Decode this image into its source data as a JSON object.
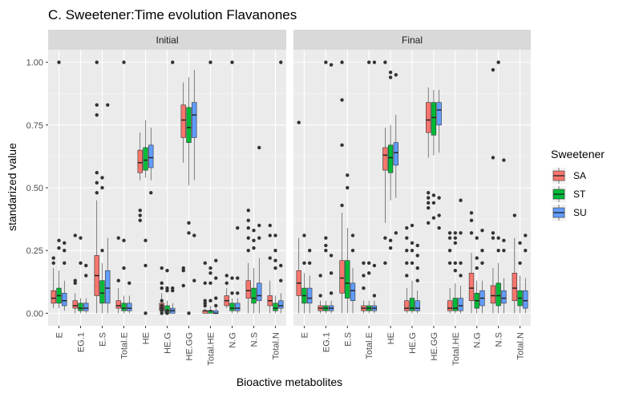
{
  "chart_data": {
    "type": "boxplot",
    "title": "C. Sweetener:Time evolution Flavanones",
    "xlabel": "Bioactive metabolites",
    "ylabel": "standarized value",
    "ylim": [
      -0.05,
      1.05
    ],
    "yticks": [
      0.0,
      0.25,
      0.5,
      0.75,
      1.0
    ],
    "ytick_labels": [
      "0.00",
      "0.25",
      "0.50",
      "0.75",
      "1.00"
    ],
    "grid": true,
    "legend": {
      "title": "Sweetener",
      "position": "right",
      "items": [
        {
          "name": "SA",
          "color": "#F8766D"
        },
        {
          "name": "ST",
          "color": "#00BA38"
        },
        {
          "name": "SU",
          "color": "#619CFF"
        }
      ]
    },
    "categories": [
      "E",
      "EG.1",
      "E.S",
      "Total.E",
      "HE",
      "HE.G",
      "HE.GG",
      "Total.HE",
      "N.G",
      "N.S",
      "Total.N"
    ],
    "facets": [
      {
        "label": "Initial",
        "boxes": [
          [
            [
              0.02,
              0.04,
              0.06,
              0.09,
              0.18,
              [
                0.2,
                0.22
              ]
            ],
            [
              0.02,
              0.04,
              0.07,
              0.1,
              0.17,
              [
                0.26,
                0.29,
                1.0
              ]
            ],
            [
              0.01,
              0.03,
              0.05,
              0.08,
              0.13,
              [
                0.2,
                0.28,
                0.25
              ]
            ]
          ],
          [
            [
              0.0,
              0.02,
              0.03,
              0.05,
              0.08,
              [
                0.13,
                0.31,
                0.12
              ]
            ],
            [
              0.0,
              0.01,
              0.02,
              0.04,
              0.06,
              [
                0.2,
                0.3
              ]
            ],
            [
              0.0,
              0.01,
              0.02,
              0.04,
              0.06,
              [
                0.15,
                0.19
              ]
            ]
          ],
          [
            [
              0.0,
              0.07,
              0.15,
              0.23,
              0.45,
              [
                0.48,
                0.52,
                0.56,
                0.79,
                0.83,
                1.0
              ]
            ],
            [
              0.0,
              0.04,
              0.08,
              0.13,
              0.2,
              [
                0.25,
                0.5,
                0.54
              ]
            ],
            [
              0.0,
              0.04,
              0.1,
              0.17,
              0.3,
              [
                0.83
              ]
            ]
          ],
          [
            [
              0.0,
              0.02,
              0.03,
              0.05,
              0.1,
              [
                0.13,
                0.3
              ]
            ],
            [
              0.0,
              0.01,
              0.02,
              0.04,
              0.07,
              [
                0.18,
                0.29,
                1.0
              ]
            ],
            [
              0.0,
              0.01,
              0.02,
              0.04,
              0.07,
              [
                0.12
              ]
            ]
          ],
          [
            [
              0.53,
              0.56,
              0.6,
              0.65,
              0.72,
              [
                0.41,
                0.39,
                0.37
              ]
            ],
            [
              0.54,
              0.57,
              0.61,
              0.66,
              0.77,
              [
                0.29,
                0.19,
                0.0
              ]
            ],
            [
              0.53,
              0.58,
              0.62,
              0.67,
              0.74,
              [
                0.48
              ]
            ]
          ],
          [
            [
              0.0,
              0.01,
              0.02,
              0.04,
              0.08,
              [
                0.18,
                0.12,
                0.1,
                0.05,
                0.03,
                0.02,
                0.01,
                0.0
              ]
            ],
            [
              0.0,
              0.0,
              0.01,
              0.03,
              0.05,
              [
                0.17,
                0.1,
                0.09,
                0.01,
                0.0
              ]
            ],
            [
              0.0,
              0.0,
              0.01,
              0.02,
              0.04,
              [
                0.1,
                0.09,
                1.0
              ]
            ]
          ],
          [
            [
              0.6,
              0.7,
              0.77,
              0.83,
              0.92,
              [
                0.18,
                0.17,
                0.11
              ]
            ],
            [
              0.51,
              0.68,
              0.74,
              0.82,
              0.94,
              [
                0.36,
                0.32,
                0.0
              ]
            ],
            [
              0.53,
              0.7,
              0.79,
              0.84,
              0.97,
              [
                0.31,
                0.13
              ]
            ]
          ],
          [
            [
              0.0,
              0.0,
              0.01,
              0.01,
              0.02,
              [
                0.2,
                0.12,
                0.05,
                0.04,
                0.03
              ]
            ],
            [
              0.0,
              0.0,
              0.01,
              0.01,
              0.03,
              [
                0.18,
                0.16,
                0.12,
                0.05,
                1.0
              ]
            ],
            [
              0.0,
              0.0,
              0.0,
              0.01,
              0.02,
              [
                0.21,
                0.14,
                0.06,
                0.03
              ]
            ]
          ],
          [
            [
              0.02,
              0.03,
              0.05,
              0.07,
              0.1,
              [
                0.12,
                0.15
              ]
            ],
            [
              0.0,
              0.01,
              0.02,
              0.04,
              0.06,
              [
                0.14,
                0.08,
                1.0
              ]
            ],
            [
              0.0,
              0.01,
              0.02,
              0.04,
              0.06,
              [
                0.14,
                0.08,
                0.34
              ]
            ]
          ],
          [
            [
              0.0,
              0.06,
              0.09,
              0.13,
              0.2,
              [
                0.25,
                0.3,
                0.37,
                0.41,
                0.34
              ]
            ],
            [
              0.0,
              0.04,
              0.06,
              0.1,
              0.18,
              [
                0.26,
                0.29,
                0.33
              ]
            ],
            [
              0.0,
              0.05,
              0.07,
              0.12,
              0.22,
              [
                0.3,
                0.35,
                0.66
              ]
            ]
          ],
          [
            [
              0.0,
              0.03,
              0.05,
              0.07,
              0.13,
              [
                0.22,
                0.31,
                0.35
              ]
            ],
            [
              0.0,
              0.01,
              0.02,
              0.04,
              0.07,
              [
                0.18,
                0.21,
                0.25,
                0.31
              ]
            ],
            [
              0.0,
              0.02,
              0.03,
              0.05,
              0.08,
              [
                0.13,
                0.19,
                1.0
              ]
            ]
          ]
        ]
      },
      {
        "label": "Final",
        "boxes": [
          [
            [
              0.0,
              0.07,
              0.12,
              0.17,
              0.3,
              [
                0.76
              ]
            ],
            [
              0.0,
              0.04,
              0.07,
              0.1,
              0.16,
              [
                0.2,
                0.31
              ]
            ],
            [
              0.0,
              0.04,
              0.06,
              0.1,
              0.15,
              [
                0.2,
                0.25
              ]
            ]
          ],
          [
            [
              0.0,
              0.01,
              0.02,
              0.03,
              0.05,
              [
                0.07,
                0.15
              ]
            ],
            [
              0.0,
              0.01,
              0.02,
              0.03,
              0.05,
              [
                0.25,
                0.27,
                0.3,
                1.0
              ]
            ],
            [
              0.0,
              0.01,
              0.02,
              0.03,
              0.05,
              [
                0.08,
                0.16,
                0.23,
                0.99
              ]
            ]
          ],
          [
            [
              0.0,
              0.08,
              0.14,
              0.21,
              0.4,
              [
                0.43,
                0.67,
                0.85,
                1.0
              ]
            ],
            [
              0.0,
              0.06,
              0.12,
              0.21,
              0.34,
              [
                0.5,
                0.55
              ]
            ],
            [
              0.0,
              0.05,
              0.09,
              0.12,
              0.18,
              [
                0.25,
                0.31
              ]
            ]
          ],
          [
            [
              0.0,
              0.01,
              0.02,
              0.03,
              0.05,
              [
                0.1,
                0.15,
                0.2
              ]
            ],
            [
              0.0,
              0.01,
              0.02,
              0.03,
              0.05,
              [
                0.16,
                0.2,
                1.0
              ]
            ],
            [
              0.0,
              0.01,
              0.02,
              0.03,
              0.05,
              [
                0.07,
                0.19,
                1.0
              ]
            ]
          ],
          [
            [
              0.36,
              0.57,
              0.63,
              0.66,
              0.74,
              [
                0.2,
                0.3,
                1.0
              ]
            ],
            [
              0.45,
              0.56,
              0.62,
              0.67,
              0.75,
              [
                0.26,
                0.29,
                0.94,
                0.96
              ]
            ],
            [
              0.46,
              0.59,
              0.64,
              0.68,
              0.79,
              [
                0.32,
                0.95
              ]
            ]
          ],
          [
            [
              0.0,
              0.01,
              0.02,
              0.05,
              0.1,
              [
                0.15,
                0.2,
                0.25,
                0.3,
                0.34
              ]
            ],
            [
              0.0,
              0.01,
              0.02,
              0.06,
              0.13,
              [
                0.2,
                0.25,
                0.28,
                0.35
              ]
            ],
            [
              0.0,
              0.01,
              0.02,
              0.05,
              0.09,
              [
                0.13,
                0.18,
                0.23,
                0.27
              ]
            ]
          ],
          [
            [
              0.62,
              0.72,
              0.77,
              0.84,
              0.9,
              [
                0.48,
                0.46,
                0.44,
                0.42,
                0.36
              ]
            ],
            [
              0.63,
              0.71,
              0.78,
              0.84,
              0.89,
              [
                0.47,
                0.44,
                0.38
              ]
            ],
            [
              0.64,
              0.75,
              0.81,
              0.84,
              0.89,
              [
                0.46,
                0.39,
                0.34
              ]
            ]
          ],
          [
            [
              0.0,
              0.01,
              0.02,
              0.05,
              0.1,
              [
                0.2,
                0.25,
                0.3,
                0.32
              ]
            ],
            [
              0.0,
              0.01,
              0.02,
              0.06,
              0.12,
              [
                0.17,
                0.2,
                0.28,
                0.3,
                0.32
              ]
            ],
            [
              0.0,
              0.01,
              0.03,
              0.06,
              0.11,
              [
                0.15,
                0.2,
                0.32,
                0.45
              ]
            ]
          ],
          [
            [
              0.0,
              0.05,
              0.1,
              0.16,
              0.24,
              [
                0.32,
                0.37,
                0.4
              ]
            ],
            [
              0.0,
              0.02,
              0.05,
              0.08,
              0.13,
              [
                0.18,
                0.22,
                0.3
              ]
            ],
            [
              0.0,
              0.03,
              0.06,
              0.09,
              0.13,
              [
                0.2,
                0.25,
                0.33
              ]
            ]
          ],
          [
            [
              0.0,
              0.04,
              0.07,
              0.11,
              0.18,
              [
                0.3,
                0.32,
                0.62,
                0.97
              ]
            ],
            [
              0.0,
              0.03,
              0.07,
              0.12,
              0.2,
              [
                0.25,
                0.3,
                1.0
              ]
            ],
            [
              0.0,
              0.04,
              0.06,
              0.09,
              0.14,
              [
                0.25,
                0.29,
                0.61
              ]
            ]
          ],
          [
            [
              0.0,
              0.05,
              0.1,
              0.16,
              0.3,
              [
                0.39
              ]
            ],
            [
              0.0,
              0.03,
              0.06,
              0.09,
              0.15,
              [
                0.2,
                0.28
              ]
            ],
            [
              0.0,
              0.02,
              0.05,
              0.09,
              0.14,
              [
                0.25,
                0.31
              ]
            ]
          ]
        ]
      }
    ]
  }
}
